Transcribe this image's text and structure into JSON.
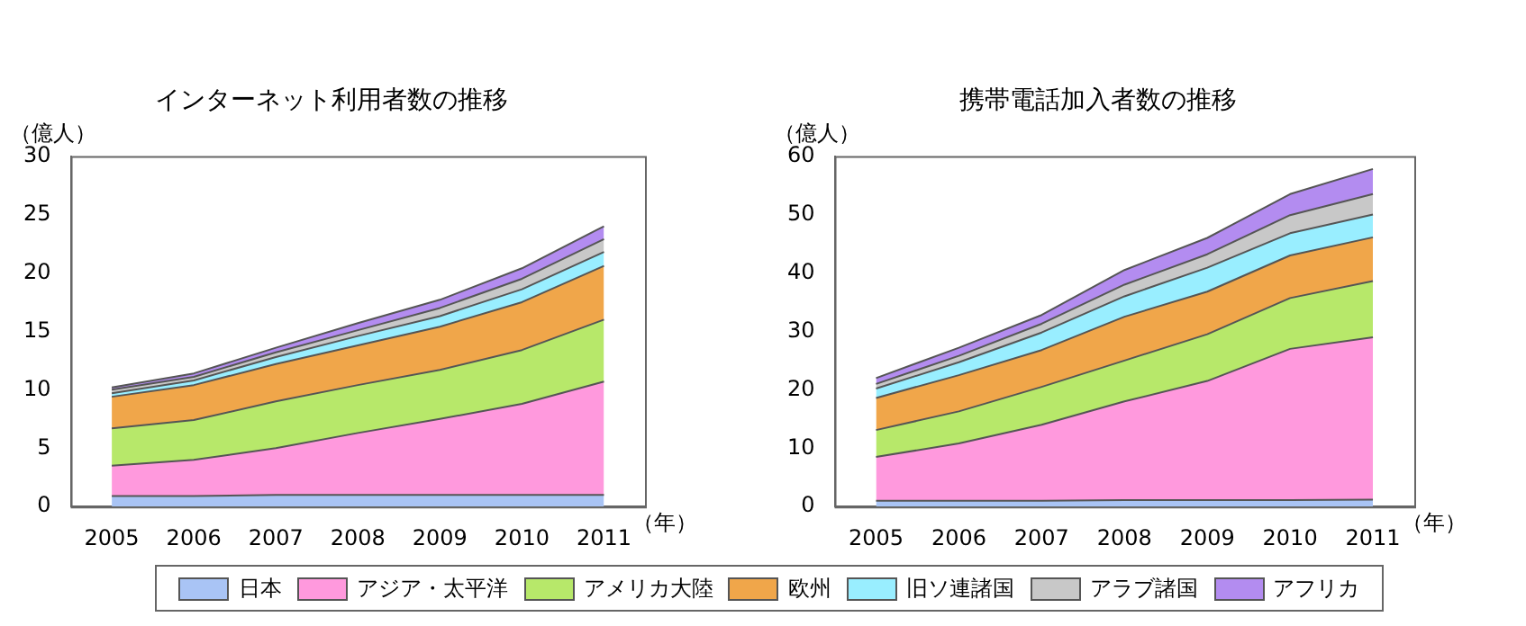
{
  "chart_data": [
    {
      "type": "area",
      "stacked": true,
      "title": "インターネット利用者数の推移",
      "ylabel": "（億人）",
      "xlabel": "（年）",
      "legend": "bottom",
      "x": [
        2005,
        2006,
        2007,
        2008,
        2009,
        2010,
        2011
      ],
      "xlim": [
        2004.5,
        2011.5
      ],
      "xticks": [
        2005,
        2006,
        2007,
        2008,
        2009,
        2010,
        2011
      ],
      "ylim": [
        0,
        30
      ],
      "yticks": [
        0,
        5,
        10,
        15,
        20,
        25,
        30
      ],
      "series": [
        {
          "name": "日本",
          "color": "#a9c4f5",
          "values": [
            0.9,
            0.9,
            1.0,
            1.0,
            1.0,
            1.0,
            1.0
          ]
        },
        {
          "name": "アジア・太平洋",
          "color": "#ff99dd",
          "values": [
            2.6,
            3.1,
            4.0,
            5.3,
            6.5,
            7.8,
            9.7
          ]
        },
        {
          "name": "アメリカ大陸",
          "color": "#b7e86a",
          "values": [
            3.2,
            3.4,
            4.0,
            4.1,
            4.2,
            4.6,
            5.3
          ]
        },
        {
          "name": "欧州",
          "color": "#f0a64a",
          "values": [
            2.7,
            3.0,
            3.2,
            3.4,
            3.7,
            4.1,
            4.6
          ]
        },
        {
          "name": "旧ソ連諸国",
          "color": "#99eeff",
          "values": [
            0.3,
            0.4,
            0.6,
            0.8,
            0.9,
            1.1,
            1.2
          ]
        },
        {
          "name": "アラブ諸国",
          "color": "#c8c8c8",
          "values": [
            0.3,
            0.3,
            0.4,
            0.5,
            0.7,
            0.9,
            1.1
          ]
        },
        {
          "name": "アフリカ",
          "color": "#b38cf0",
          "values": [
            0.2,
            0.3,
            0.4,
            0.6,
            0.7,
            0.9,
            1.1
          ]
        }
      ]
    },
    {
      "type": "area",
      "stacked": true,
      "title": "携帯電話加入者数の推移",
      "ylabel": "（億人）",
      "legend": "bottom",
      "xlabel": "（年）",
      "x": [
        2005,
        2006,
        2007,
        2008,
        2009,
        2010,
        2011
      ],
      "xlim": [
        2004.5,
        2011.5
      ],
      "xticks": [
        2005,
        2006,
        2007,
        2008,
        2009,
        2010,
        2011
      ],
      "ylim": [
        0,
        60
      ],
      "yticks": [
        0,
        10,
        20,
        30,
        40,
        50,
        60
      ],
      "series": [
        {
          "name": "日本",
          "color": "#a9c4f5",
          "values": [
            1.0,
            1.0,
            1.0,
            1.1,
            1.1,
            1.1,
            1.2
          ]
        },
        {
          "name": "アジア・太平洋",
          "color": "#ff99dd",
          "values": [
            7.5,
            9.8,
            13.0,
            16.9,
            20.4,
            25.9,
            27.8
          ]
        },
        {
          "name": "アメリカ大陸",
          "color": "#b7e86a",
          "values": [
            4.6,
            5.5,
            6.5,
            7.0,
            8.0,
            8.7,
            9.6
          ]
        },
        {
          "name": "欧州",
          "color": "#f0a64a",
          "values": [
            5.5,
            6.2,
            6.3,
            7.5,
            7.3,
            7.3,
            7.5
          ]
        },
        {
          "name": "旧ソ連諸国",
          "color": "#99eeff",
          "values": [
            1.6,
            2.2,
            3.0,
            3.5,
            4.1,
            3.8,
            3.9
          ]
        },
        {
          "name": "アラブ諸国",
          "color": "#c8c8c8",
          "values": [
            0.8,
            1.1,
            1.5,
            2.0,
            2.3,
            3.1,
            3.5
          ]
        },
        {
          "name": "アフリカ",
          "color": "#b38cf0",
          "values": [
            1.0,
            1.4,
            1.5,
            2.5,
            2.8,
            3.6,
            4.3
          ]
        }
      ]
    }
  ]
}
